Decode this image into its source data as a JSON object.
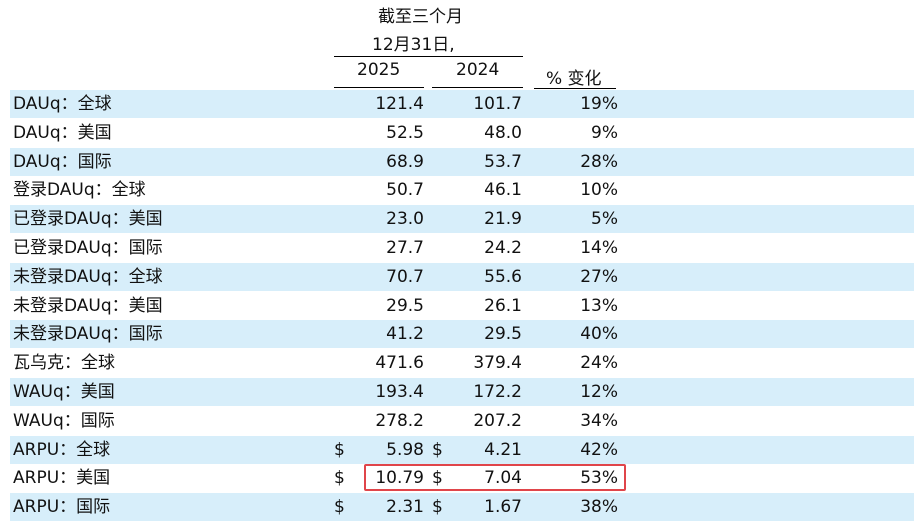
{
  "header": {
    "period_line1": "截至三个月",
    "period_line2": "12月31日,",
    "col_2025": "2025",
    "col_2024": "2024",
    "col_change": "% 变化"
  },
  "highlight_color": "#e0454a",
  "shade_color": "#d7eefa",
  "rows": [
    {
      "label": "DAUq：全球",
      "v2025": "121.4",
      "v2024": "101.7",
      "change": "19%",
      "currency": ""
    },
    {
      "label": "DAUq：美国",
      "v2025": "52.5",
      "v2024": "48.0",
      "change": "9%",
      "currency": ""
    },
    {
      "label": "DAUq：国际",
      "v2025": "68.9",
      "v2024": "53.7",
      "change": "28%",
      "currency": ""
    },
    {
      "label": "登录DAUq：全球",
      "v2025": "50.7",
      "v2024": "46.1",
      "change": "10%",
      "currency": ""
    },
    {
      "label": "已登录DAUq：美国",
      "v2025": "23.0",
      "v2024": "21.9",
      "change": "5%",
      "currency": ""
    },
    {
      "label": "已登录DAUq：国际",
      "v2025": "27.7",
      "v2024": "24.2",
      "change": "14%",
      "currency": ""
    },
    {
      "label": "未登录DAUq：全球",
      "v2025": "70.7",
      "v2024": "55.6",
      "change": "27%",
      "currency": ""
    },
    {
      "label": "未登录DAUq：美国",
      "v2025": "29.5",
      "v2024": "26.1",
      "change": "13%",
      "currency": ""
    },
    {
      "label": "未登录DAUq：国际",
      "v2025": "41.2",
      "v2024": "29.5",
      "change": "40%",
      "currency": ""
    },
    {
      "label": "瓦乌克：全球",
      "v2025": "471.6",
      "v2024": "379.4",
      "change": "24%",
      "currency": ""
    },
    {
      "label": "WAUq：美国",
      "v2025": "193.4",
      "v2024": "172.2",
      "change": "12%",
      "currency": ""
    },
    {
      "label": "WAUq：国际",
      "v2025": "278.2",
      "v2024": "207.2",
      "change": "34%",
      "currency": ""
    },
    {
      "label": "ARPU：全球",
      "v2025": "5.98",
      "v2024": "4.21",
      "change": "42%",
      "currency": "$"
    },
    {
      "label": "ARPU：美国",
      "v2025": "10.79",
      "v2024": "7.04",
      "change": "53%",
      "currency": "$"
    },
    {
      "label": "ARPU：国际",
      "v2025": "2.31",
      "v2024": "1.67",
      "change": "38%",
      "currency": "$"
    }
  ]
}
